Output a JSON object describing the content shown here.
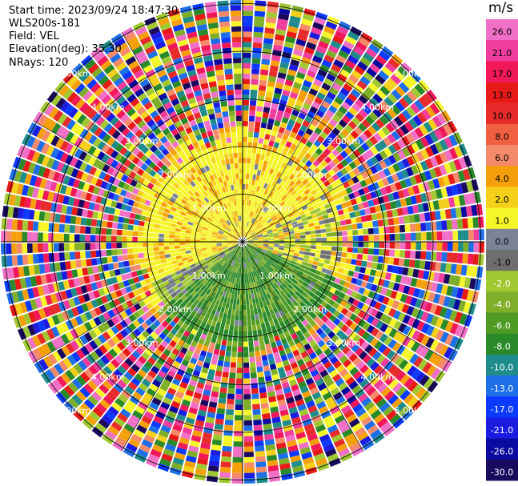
{
  "info": {
    "start_time": "Start time: 2023/09/24 18:47:30",
    "instrument": "WLS200s-181",
    "field": "Field: VEL",
    "elevation": "Elevation(deg): 35.30",
    "nrays": "NRays: 120"
  },
  "colorbar": {
    "unit": "m/s",
    "colors": [
      "#1a0a5e",
      "#0a0aa0",
      "#1c1ce0",
      "#0a3aff",
      "#1e6ee8",
      "#1f8c8c",
      "#2a8a2a",
      "#4f9a22",
      "#7fae28",
      "#a0c830",
      "#6e6e6e",
      "#7a8496",
      "#f5f52a",
      "#f5d01a",
      "#f5a00a",
      "#f58a6a",
      "#f06040",
      "#e82a2a",
      "#e81a18",
      "#f01858",
      "#f03c9c",
      "#f070c8"
    ],
    "tick_labels": [
      "26.0",
      "21.0",
      "17.0",
      "13.0",
      "10.0",
      "8.0",
      "6.0",
      "4.0",
      "2.0",
      "1.0",
      "0.0",
      "-1.0",
      "-2.0",
      "-4.0",
      "-6.0",
      "-8.0",
      "-10.0",
      "-13.0",
      "-17.0",
      "-21.0",
      "-26.0",
      "-30.0"
    ]
  },
  "rings": {
    "labels": [
      "1.00km",
      "2.00km",
      "3.00km",
      "4.00km",
      "5.00km"
    ]
  }
}
